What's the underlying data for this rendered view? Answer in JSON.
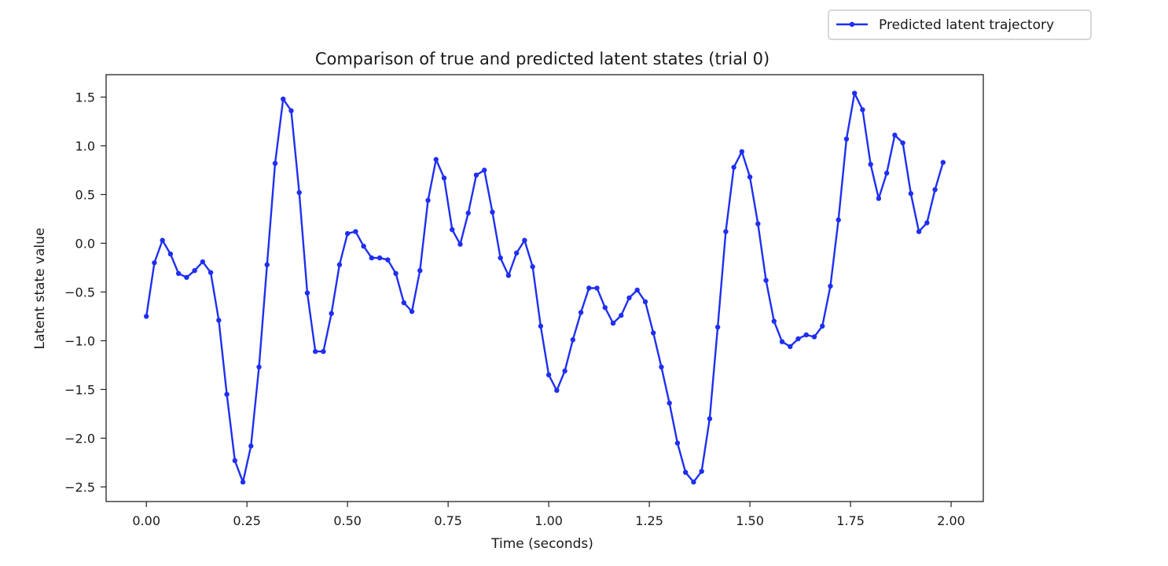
{
  "chart_data": {
    "type": "line",
    "title": "Comparison of true and predicted latent states (trial 0)",
    "xlabel": "Time (seconds)",
    "ylabel": "Latent state value",
    "xlim": [
      -0.1,
      2.08
    ],
    "ylim": [
      -2.65,
      1.73
    ],
    "x_ticks": [
      0.0,
      0.25,
      0.5,
      0.75,
      1.0,
      1.25,
      1.5,
      1.75,
      2.0
    ],
    "x_tick_labels": [
      "0.00",
      "0.25",
      "0.50",
      "0.75",
      "1.00",
      "1.25",
      "1.50",
      "1.75",
      "2.00"
    ],
    "y_ticks": [
      1.5,
      1.0,
      0.5,
      0.0,
      -0.5,
      -1.0,
      -1.5,
      -2.0,
      -2.5
    ],
    "y_tick_labels": [
      "1.5",
      "1.0",
      "0.5",
      "0.0",
      "−0.5",
      "−1.0",
      "−1.5",
      "−2.0",
      "−2.5"
    ],
    "grid": false,
    "legend_position": "upper-right-outside",
    "series": [
      {
        "name": "Predicted latent trajectory",
        "color": "#1f2ff0",
        "marker": "circle",
        "x": [
          0.0,
          0.02,
          0.04,
          0.06,
          0.08,
          0.1,
          0.12,
          0.14,
          0.16,
          0.18,
          0.2,
          0.22,
          0.24,
          0.26,
          0.28,
          0.3,
          0.32,
          0.34,
          0.36,
          0.38,
          0.4,
          0.42,
          0.44,
          0.46,
          0.48,
          0.5,
          0.52,
          0.54,
          0.56,
          0.58,
          0.6,
          0.62,
          0.64,
          0.66,
          0.68,
          0.7,
          0.72,
          0.74,
          0.76,
          0.78,
          0.8,
          0.82,
          0.84,
          0.86,
          0.88,
          0.9,
          0.92,
          0.94,
          0.96,
          0.98,
          1.0,
          1.02,
          1.04,
          1.06,
          1.08,
          1.1,
          1.12,
          1.14,
          1.16,
          1.18,
          1.2,
          1.22,
          1.24,
          1.26,
          1.28,
          1.3,
          1.32,
          1.34,
          1.36,
          1.38,
          1.4,
          1.42,
          1.44,
          1.46,
          1.48,
          1.5,
          1.52,
          1.54,
          1.56,
          1.58,
          1.6,
          1.62,
          1.64,
          1.66,
          1.68,
          1.7,
          1.72,
          1.74,
          1.76,
          1.78,
          1.8,
          1.82,
          1.84,
          1.86,
          1.88,
          1.9,
          1.92,
          1.94,
          1.96,
          1.98
        ],
        "y": [
          -0.75,
          -0.2,
          0.03,
          -0.11,
          -0.31,
          -0.35,
          -0.28,
          -0.19,
          -0.3,
          -0.79,
          -1.55,
          -2.23,
          -2.45,
          -2.08,
          -1.27,
          -0.22,
          0.82,
          1.48,
          1.36,
          0.52,
          -0.51,
          -1.11,
          -1.11,
          -0.72,
          -0.22,
          0.1,
          0.12,
          -0.03,
          -0.15,
          -0.15,
          -0.17,
          -0.31,
          -0.61,
          -0.7,
          -0.28,
          0.44,
          0.86,
          0.67,
          0.14,
          -0.01,
          0.31,
          0.7,
          0.75,
          0.32,
          -0.15,
          -0.33,
          -0.1,
          0.03,
          -0.24,
          -0.85,
          -1.35,
          -1.51,
          -1.31,
          -0.99,
          -0.71,
          -0.46,
          -0.46,
          -0.66,
          -0.82,
          -0.74,
          -0.56,
          -0.48,
          -0.6,
          -0.92,
          -1.27,
          -1.64,
          -2.05,
          -2.35,
          -2.45,
          -2.34,
          -1.8,
          -0.86,
          0.12,
          0.78,
          0.94,
          0.68,
          0.2,
          -0.38,
          -0.8,
          -1.01,
          -1.06,
          -0.98,
          -0.94,
          -0.96,
          -0.85,
          -0.44,
          0.24,
          1.07,
          1.54,
          1.37,
          0.81,
          0.46,
          0.72,
          1.11,
          1.03,
          0.51,
          0.12,
          0.21,
          0.55,
          0.83
        ]
      }
    ]
  }
}
